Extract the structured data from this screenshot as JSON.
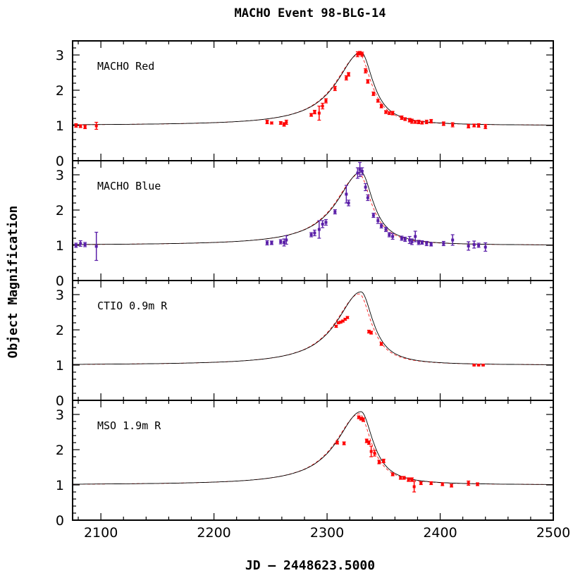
{
  "chart_data": {
    "type": "scatter",
    "title": "MACHO Event 98-BLG-14",
    "xlabel": "JD – 2448623.5000",
    "ylabel": "Object Magnification",
    "xlim": [
      2075,
      2500
    ],
    "ylim": [
      0,
      3.4
    ],
    "x_ticks": [
      "2100",
      "2200",
      "2300",
      "2400",
      "2500"
    ],
    "y_ticks": [
      "0",
      "1",
      "2",
      "3"
    ],
    "colors": {
      "red": "#ff0000",
      "blue": "#5a1fa8",
      "model": "#000000"
    },
    "panels": [
      {
        "label": "MACHO Red",
        "color": "#ff0000",
        "points": [
          [
            2078,
            1.0,
            0.05
          ],
          [
            2082,
            0.98,
            0.04
          ],
          [
            2086,
            0.96,
            0.05
          ],
          [
            2096,
            0.99,
            0.1
          ],
          [
            2247,
            1.1,
            0.05
          ],
          [
            2251,
            1.07,
            0.03
          ],
          [
            2259,
            1.07,
            0.04
          ],
          [
            2262,
            1.03,
            0.05
          ],
          [
            2264,
            1.09,
            0.06
          ],
          [
            2286,
            1.3,
            0.04
          ],
          [
            2289,
            1.38,
            0.05
          ],
          [
            2293,
            1.35,
            0.2
          ],
          [
            2296,
            1.55,
            0.08
          ],
          [
            2299,
            1.7,
            0.06
          ],
          [
            2307,
            2.05,
            0.06
          ],
          [
            2317,
            2.35,
            0.06
          ],
          [
            2319,
            2.45,
            0.05
          ],
          [
            2327,
            3.02,
            0.07
          ],
          [
            2329,
            3.05,
            0.05
          ],
          [
            2331,
            3.02,
            0.06
          ],
          [
            2334,
            2.55,
            0.06
          ],
          [
            2336,
            2.25,
            0.05
          ],
          [
            2341,
            1.9,
            0.05
          ],
          [
            2345,
            1.7,
            0.04
          ],
          [
            2348,
            1.55,
            0.05
          ],
          [
            2352,
            1.38,
            0.04
          ],
          [
            2355,
            1.35,
            0.04
          ],
          [
            2358,
            1.35,
            0.05
          ],
          [
            2366,
            1.22,
            0.05
          ],
          [
            2369,
            1.18,
            0.04
          ],
          [
            2373,
            1.15,
            0.05
          ],
          [
            2375,
            1.12,
            0.06
          ],
          [
            2378,
            1.1,
            0.04
          ],
          [
            2381,
            1.1,
            0.05
          ],
          [
            2384,
            1.08,
            0.04
          ],
          [
            2388,
            1.1,
            0.05
          ],
          [
            2392,
            1.12,
            0.05
          ],
          [
            2403,
            1.05,
            0.05
          ],
          [
            2411,
            1.02,
            0.06
          ],
          [
            2425,
            0.98,
            0.05
          ],
          [
            2430,
            1.0,
            0.04
          ],
          [
            2434,
            1.0,
            0.05
          ],
          [
            2440,
            0.97,
            0.06
          ]
        ]
      },
      {
        "label": "MACHO Blue",
        "color": "#5a1fa8",
        "points": [
          [
            2078,
            1.0,
            0.06
          ],
          [
            2082,
            1.05,
            0.08
          ],
          [
            2086,
            1.02,
            0.06
          ],
          [
            2096,
            0.97,
            0.4
          ],
          [
            2247,
            1.07,
            0.06
          ],
          [
            2251,
            1.07,
            0.05
          ],
          [
            2259,
            1.1,
            0.06
          ],
          [
            2262,
            1.08,
            0.1
          ],
          [
            2264,
            1.15,
            0.12
          ],
          [
            2286,
            1.3,
            0.06
          ],
          [
            2289,
            1.35,
            0.08
          ],
          [
            2293,
            1.45,
            0.25
          ],
          [
            2296,
            1.6,
            0.1
          ],
          [
            2299,
            1.65,
            0.08
          ],
          [
            2307,
            1.95,
            0.06
          ],
          [
            2317,
            2.45,
            0.25
          ],
          [
            2319,
            2.2,
            0.08
          ],
          [
            2327,
            3.05,
            0.15
          ],
          [
            2329,
            3.15,
            0.2
          ],
          [
            2331,
            3.1,
            0.1
          ],
          [
            2334,
            2.65,
            0.1
          ],
          [
            2336,
            2.35,
            0.08
          ],
          [
            2341,
            1.85,
            0.06
          ],
          [
            2345,
            1.7,
            0.08
          ],
          [
            2348,
            1.55,
            0.06
          ],
          [
            2352,
            1.45,
            0.06
          ],
          [
            2355,
            1.3,
            0.06
          ],
          [
            2358,
            1.25,
            0.08
          ],
          [
            2366,
            1.2,
            0.06
          ],
          [
            2369,
            1.17,
            0.06
          ],
          [
            2373,
            1.15,
            0.1
          ],
          [
            2375,
            1.1,
            0.08
          ],
          [
            2378,
            1.25,
            0.15
          ],
          [
            2381,
            1.08,
            0.06
          ],
          [
            2384,
            1.08,
            0.05
          ],
          [
            2388,
            1.05,
            0.06
          ],
          [
            2392,
            1.03,
            0.05
          ],
          [
            2403,
            1.05,
            0.06
          ],
          [
            2411,
            1.15,
            0.15
          ],
          [
            2425,
            0.98,
            0.12
          ],
          [
            2430,
            1.02,
            0.1
          ],
          [
            2434,
            1.0,
            0.06
          ],
          [
            2440,
            0.95,
            0.12
          ]
        ]
      },
      {
        "label": "CTIO 0.9m R",
        "color": "#ff0000",
        "points": [
          [
            2308,
            2.1,
            0.03
          ],
          [
            2310,
            2.2,
            0.03
          ],
          [
            2312,
            2.22,
            0.03
          ],
          [
            2314,
            2.25,
            0.03
          ],
          [
            2316,
            2.3,
            0.03
          ],
          [
            2318,
            2.35,
            0.03
          ],
          [
            2337,
            1.95,
            0.04
          ],
          [
            2339,
            1.92,
            0.04
          ],
          [
            2348,
            1.6,
            0.04
          ],
          [
            2430,
            1.0,
            0.02
          ],
          [
            2434,
            1.0,
            0.02
          ],
          [
            2438,
            1.0,
            0.02
          ]
        ]
      },
      {
        "label": "MSO 1.9m R",
        "color": "#ff0000",
        "points": [
          [
            2309,
            2.2,
            0.04
          ],
          [
            2315,
            2.18,
            0.04
          ],
          [
            2328,
            2.92,
            0.04
          ],
          [
            2330,
            2.88,
            0.04
          ],
          [
            2332,
            2.85,
            0.05
          ],
          [
            2335,
            2.25,
            0.05
          ],
          [
            2337,
            2.2,
            0.05
          ],
          [
            2339,
            1.95,
            0.15
          ],
          [
            2342,
            1.9,
            0.08
          ],
          [
            2346,
            1.65,
            0.05
          ],
          [
            2350,
            1.68,
            0.05
          ],
          [
            2358,
            1.3,
            0.04
          ],
          [
            2365,
            1.2,
            0.04
          ],
          [
            2368,
            1.2,
            0.04
          ],
          [
            2372,
            1.15,
            0.05
          ],
          [
            2375,
            1.15,
            0.05
          ],
          [
            2377,
            0.95,
            0.15
          ],
          [
            2383,
            1.05,
            0.04
          ],
          [
            2392,
            1.05,
            0.04
          ],
          [
            2402,
            1.02,
            0.04
          ],
          [
            2410,
            0.98,
            0.04
          ],
          [
            2425,
            1.05,
            0.06
          ],
          [
            2433,
            1.02,
            0.04
          ]
        ]
      }
    ],
    "model": {
      "baseline": 1.0,
      "peak_x": 2330,
      "peak_y": 3.08,
      "width_left": 26,
      "width_right": 13,
      "alt_peak_y": 3.02
    }
  }
}
